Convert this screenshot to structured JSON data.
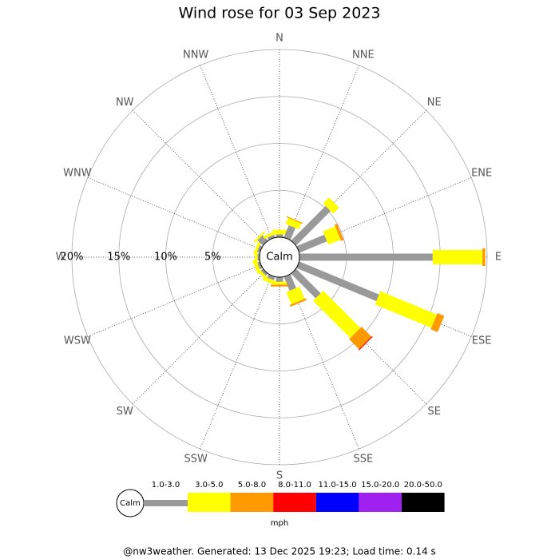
{
  "chart_data": {
    "type": "windrose",
    "title": "Wind rose for 03 Sep 2023",
    "categories": [
      "N",
      "NNE",
      "NE",
      "ENE",
      "E",
      "ESE",
      "SE",
      "SSE",
      "S",
      "SSW",
      "SW",
      "WSW",
      "W",
      "WNW",
      "NW",
      "NNW"
    ],
    "series": [
      {
        "name": "1.0-3.0",
        "color": "#999999",
        "values": [
          0.3,
          1.4,
          5.2,
          3.2,
          14.2,
          9.2,
          3.7,
          1.6,
          0.5,
          0.4,
          0.3,
          0.3,
          0.2,
          0.3,
          0.8,
          0.3
        ]
      },
      {
        "name": "3.0-5.0",
        "color": "#ffff00",
        "values": [
          0.5,
          0.7,
          0.9,
          1.4,
          5.3,
          6.5,
          5.6,
          1.4,
          0.3,
          0.4,
          0.3,
          0.4,
          0.3,
          0.3,
          0.2,
          0.3
        ]
      },
      {
        "name": "5.0-8.0",
        "color": "#ff9900",
        "values": [
          0,
          0.1,
          0,
          0.3,
          0.3,
          0.8,
          1.5,
          0.2,
          0.2,
          0,
          0,
          0,
          0,
          0,
          0,
          0
        ]
      },
      {
        "name": "8.0-11.0",
        "color": "#ff0000",
        "values": [
          0,
          0,
          0,
          0,
          0,
          0,
          0.1,
          0,
          0,
          0,
          0,
          0,
          0,
          0,
          0,
          0
        ]
      },
      {
        "name": "11.0-15.0",
        "color": "#0000ff",
        "values": [
          0,
          0,
          0,
          0,
          0,
          0,
          0,
          0,
          0,
          0,
          0,
          0,
          0,
          0,
          0,
          0
        ]
      },
      {
        "name": "15.0-20.0",
        "color": "#a020f0",
        "values": [
          0,
          0,
          0,
          0,
          0,
          0,
          0,
          0,
          0,
          0,
          0,
          0,
          0,
          0,
          0,
          0
        ]
      },
      {
        "name": "20.0-50.0",
        "color": "#000000",
        "values": [
          0,
          0,
          0,
          0,
          0,
          0,
          0,
          0,
          0,
          0,
          0,
          0,
          0,
          0,
          0,
          0
        ]
      }
    ],
    "rlim": [
      0,
      20
    ],
    "rticks": [
      {
        "value": 5,
        "label": "5%"
      },
      {
        "value": 10,
        "label": "10%"
      },
      {
        "value": 15,
        "label": "15%"
      },
      {
        "value": 20,
        "label": "20%"
      }
    ],
    "calm_label": "Calm",
    "legend_unit": "mph",
    "footer": "@nw3weather.  Generated: 13 Dec 2025 19:23; Load time: 0.14 s"
  }
}
